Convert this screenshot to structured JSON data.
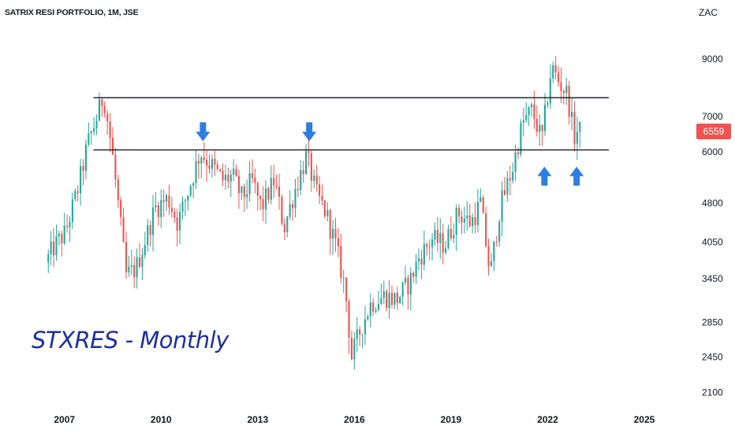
{
  "header": {
    "title": "SATRIX RESI PORTFOLIO, 1M, JSE",
    "currency": "ZAC"
  },
  "watermark": "STXRES - Monthly",
  "colors": {
    "up": "#26a69a",
    "down": "#ef5350",
    "arrow": "#2f7de1",
    "line": "#131722"
  },
  "chart_data": {
    "type": "candlestick",
    "title": "SATRIX RESI PORTFOLIO, 1M, JSE",
    "ylabel": "ZAC",
    "y_scale": "log",
    "ylim": [
      1950,
      10500
    ],
    "xlim": [
      2005.0,
      2026.2
    ],
    "y_ticks": [
      2100,
      2450,
      2850,
      3450,
      4050,
      4800,
      6000,
      7000,
      9000
    ],
    "x_ticks": [
      "2007",
      "2010",
      "2013",
      "2016",
      "2019",
      "2022",
      "2025"
    ],
    "last_price": {
      "value": 6559,
      "label": "6559"
    },
    "horizontal_levels": [
      {
        "value": 7600,
        "from": 2007.9,
        "to": 2023.9
      },
      {
        "value": 6050,
        "from": 2007.9,
        "to": 2023.9
      }
    ],
    "arrows": [
      {
        "x": 2011.3,
        "direction": "down",
        "anchor": 6200
      },
      {
        "x": 2014.6,
        "direction": "down",
        "anchor": 6200
      },
      {
        "x": 2021.9,
        "direction": "up",
        "anchor": 5700
      },
      {
        "x": 2022.9,
        "direction": "up",
        "anchor": 5700
      }
    ],
    "anchors": [
      {
        "t": 2006.5,
        "p": 3700
      },
      {
        "t": 2006.8,
        "p": 4000
      },
      {
        "t": 2007.1,
        "p": 4200
      },
      {
        "t": 2007.5,
        "p": 5100
      },
      {
        "t": 2007.8,
        "p": 6200
      },
      {
        "t": 2008.1,
        "p": 7000
      },
      {
        "t": 2008.3,
        "p": 7700
      },
      {
        "t": 2008.55,
        "p": 6100
      },
      {
        "t": 2008.8,
        "p": 4500
      },
      {
        "t": 2009.0,
        "p": 3500
      },
      {
        "t": 2009.3,
        "p": 3600
      },
      {
        "t": 2009.6,
        "p": 4100
      },
      {
        "t": 2009.9,
        "p": 4700
      },
      {
        "t": 2010.3,
        "p": 4900
      },
      {
        "t": 2010.6,
        "p": 4400
      },
      {
        "t": 2010.9,
        "p": 5000
      },
      {
        "t": 2011.3,
        "p": 6000
      },
      {
        "t": 2011.7,
        "p": 5600
      },
      {
        "t": 2012.0,
        "p": 5300
      },
      {
        "t": 2012.3,
        "p": 5400
      },
      {
        "t": 2012.6,
        "p": 4900
      },
      {
        "t": 2012.9,
        "p": 5300
      },
      {
        "t": 2013.2,
        "p": 4700
      },
      {
        "t": 2013.6,
        "p": 5300
      },
      {
        "t": 2013.9,
        "p": 4300
      },
      {
        "t": 2014.2,
        "p": 5000
      },
      {
        "t": 2014.6,
        "p": 5900
      },
      {
        "t": 2014.9,
        "p": 5000
      },
      {
        "t": 2015.2,
        "p": 4600
      },
      {
        "t": 2015.5,
        "p": 4000
      },
      {
        "t": 2015.8,
        "p": 3300
      },
      {
        "t": 2016.0,
        "p": 2450
      },
      {
        "t": 2016.3,
        "p": 2800
      },
      {
        "t": 2016.6,
        "p": 3100
      },
      {
        "t": 2017.0,
        "p": 3200
      },
      {
        "t": 2017.4,
        "p": 3150
      },
      {
        "t": 2017.8,
        "p": 3400
      },
      {
        "t": 2018.1,
        "p": 3800
      },
      {
        "t": 2018.5,
        "p": 4100
      },
      {
        "t": 2018.9,
        "p": 4000
      },
      {
        "t": 2019.3,
        "p": 4600
      },
      {
        "t": 2019.7,
        "p": 4400
      },
      {
        "t": 2020.0,
        "p": 4800
      },
      {
        "t": 2020.3,
        "p": 3500
      },
      {
        "t": 2020.6,
        "p": 4700
      },
      {
        "t": 2021.0,
        "p": 5600
      },
      {
        "t": 2021.3,
        "p": 6800
      },
      {
        "t": 2021.6,
        "p": 7200
      },
      {
        "t": 2021.9,
        "p": 6300
      },
      {
        "t": 2022.2,
        "p": 8700
      },
      {
        "t": 2022.45,
        "p": 8100
      },
      {
        "t": 2022.7,
        "p": 7700
      },
      {
        "t": 2022.9,
        "p": 6400
      },
      {
        "t": 2023.0,
        "p": 6559
      }
    ]
  }
}
